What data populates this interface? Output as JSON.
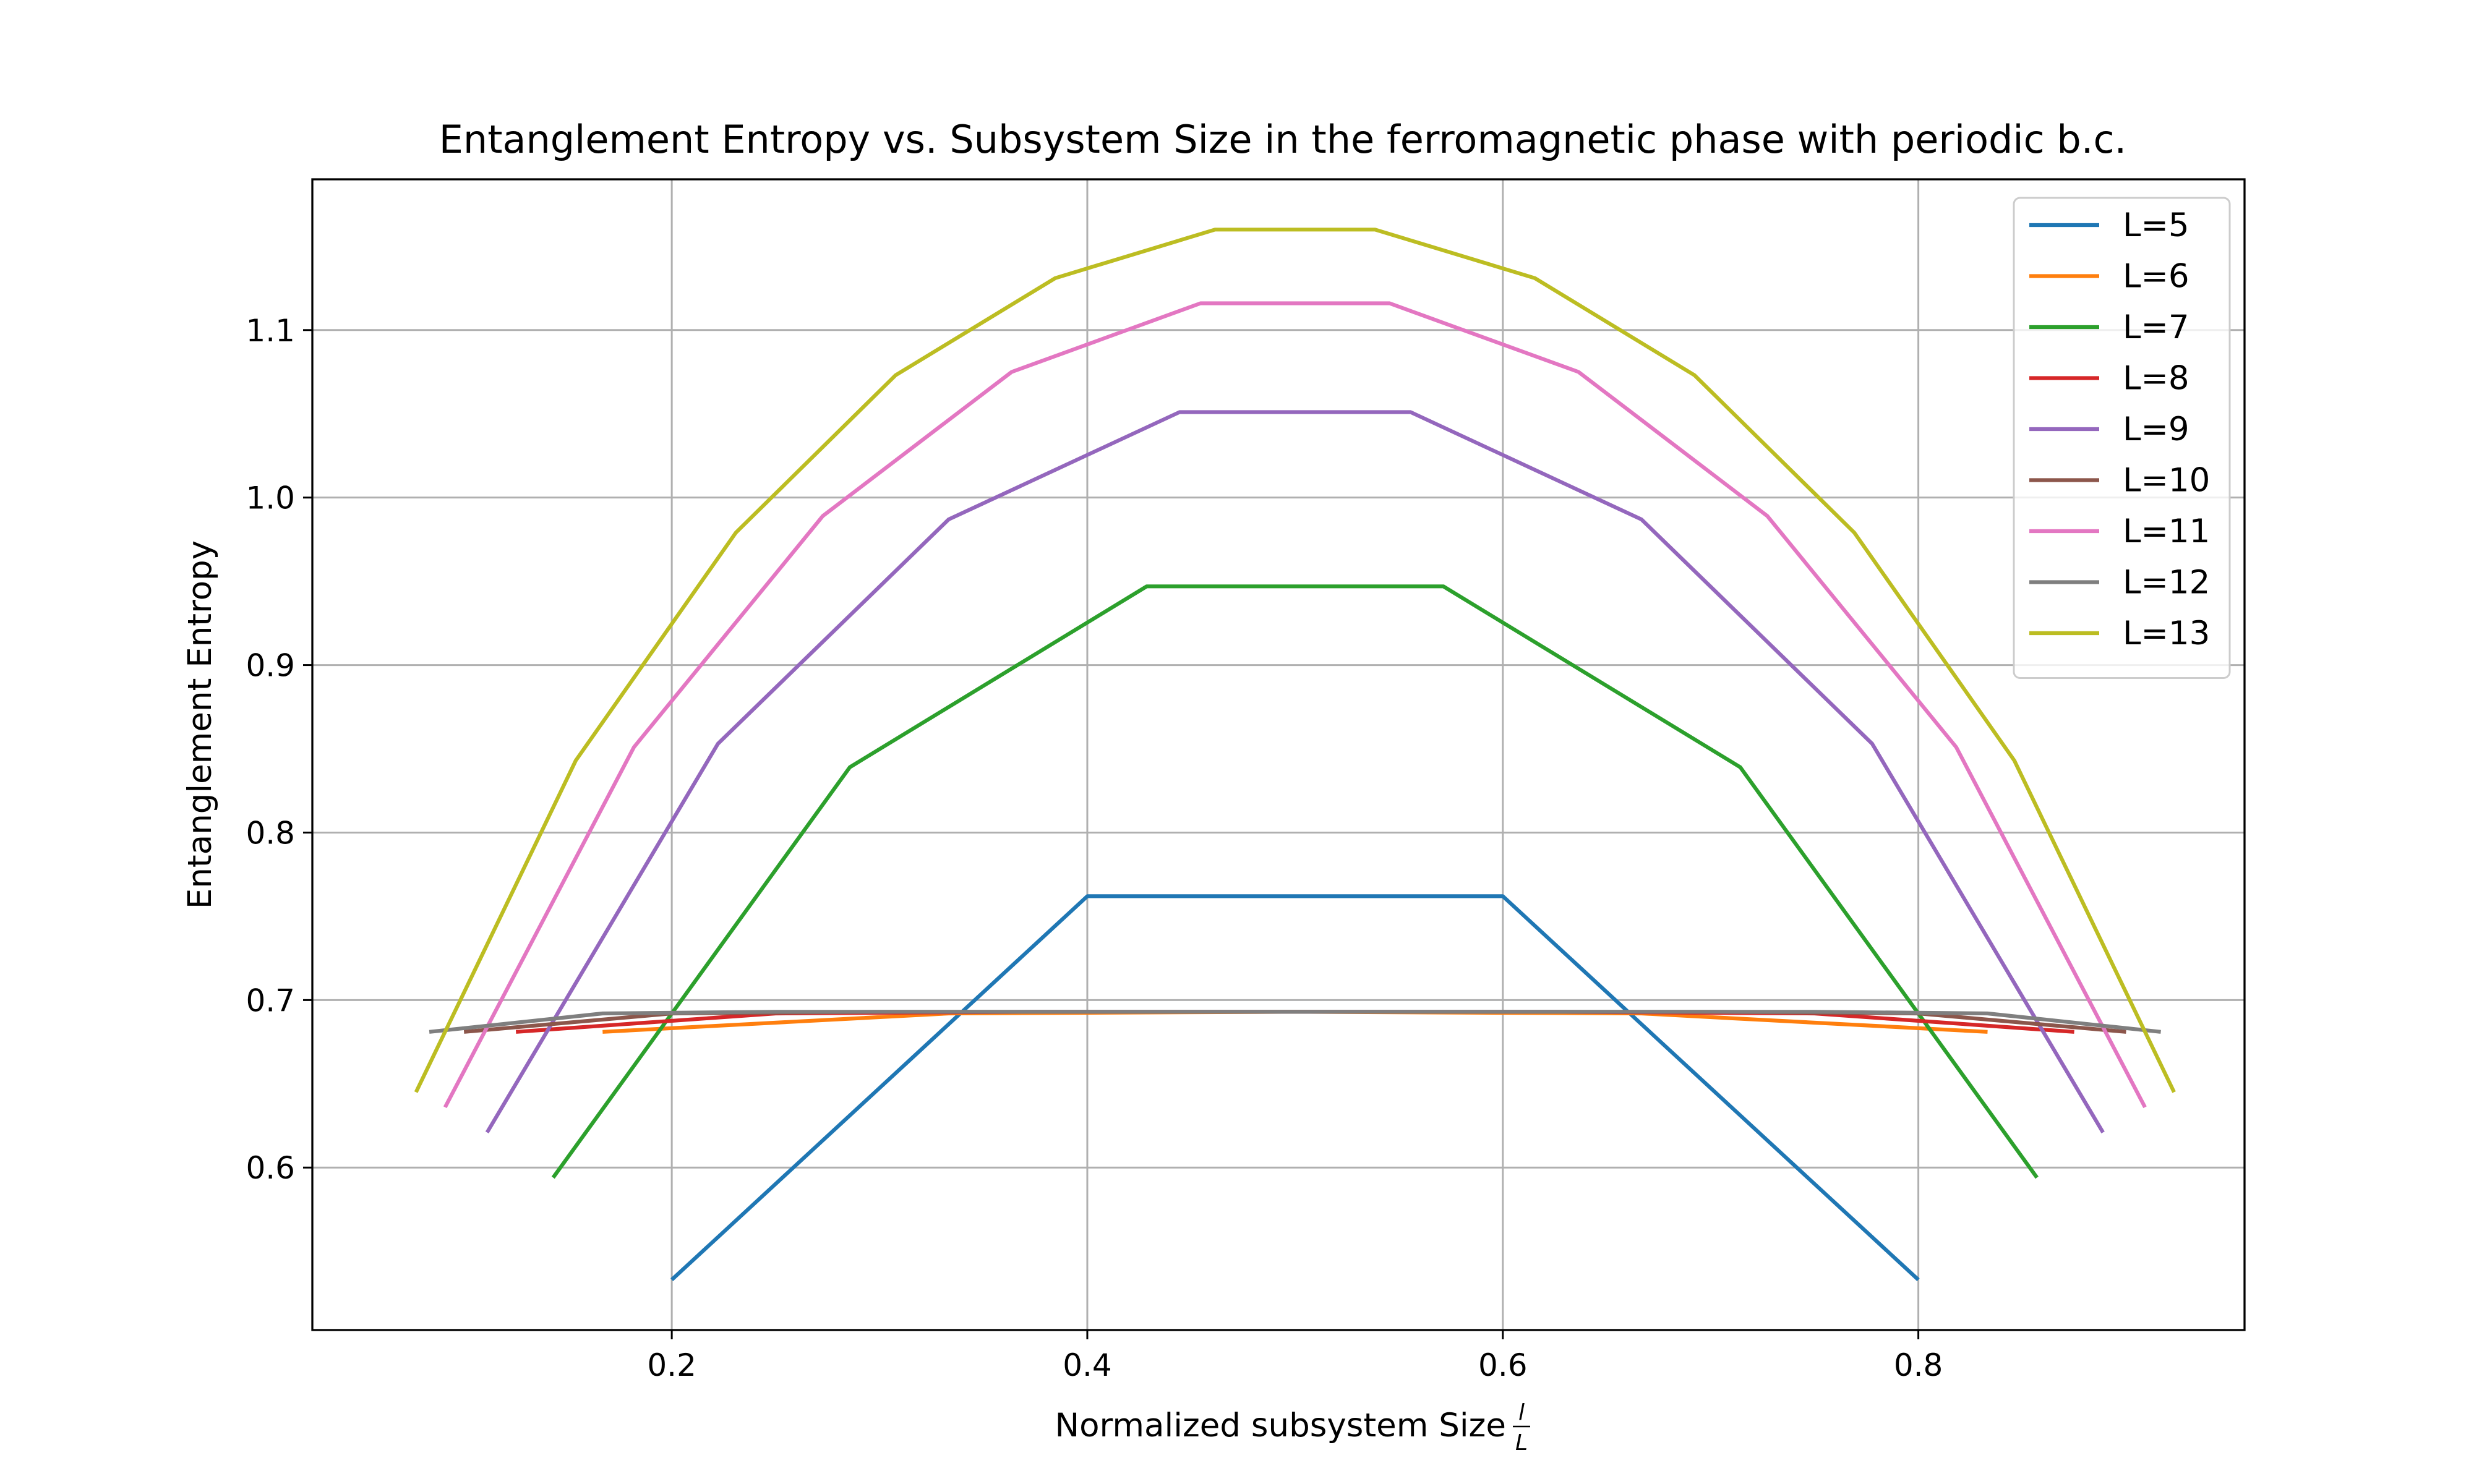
{
  "chart_data": {
    "type": "line",
    "title": "Entanglement Entropy vs. Subsystem Size in the ferromagnetic phase with periodic b.c.",
    "xlabel": "Normalized subsystem Size",
    "xlabel_frac_num": "l",
    "xlabel_frac_den": "L",
    "ylabel": "Entanglement Entropy",
    "xlim": [
      0.027,
      0.957
    ],
    "ylim": [
      0.503,
      1.19
    ],
    "grid": true,
    "legend_position": "top-right",
    "xticks": [
      {
        "value": 0.2,
        "label": "0.2"
      },
      {
        "value": 0.4,
        "label": "0.4"
      },
      {
        "value": 0.6,
        "label": "0.6"
      },
      {
        "value": 0.8,
        "label": "0.8"
      }
    ],
    "yticks": [
      {
        "value": 0.6,
        "label": "0.6"
      },
      {
        "value": 0.7,
        "label": "0.7"
      },
      {
        "value": 0.8,
        "label": "0.8"
      },
      {
        "value": 0.9,
        "label": "0.9"
      },
      {
        "value": 1.0,
        "label": "1.0"
      },
      {
        "value": 1.1,
        "label": "1.1"
      }
    ],
    "series": [
      {
        "name": "L=5",
        "color": "#1f77b4",
        "x": [
          0.2,
          0.4,
          0.6,
          0.8
        ],
        "y": [
          0.533,
          0.762,
          0.762,
          0.533
        ]
      },
      {
        "name": "L=6",
        "color": "#ff7f0e",
        "x": [
          0.1667,
          0.3333,
          0.5,
          0.6667,
          0.8333
        ],
        "y": [
          0.681,
          0.692,
          0.693,
          0.692,
          0.681
        ]
      },
      {
        "name": "L=7",
        "color": "#2ca02c",
        "x": [
          0.1429,
          0.2857,
          0.4286,
          0.5714,
          0.7143,
          0.8571
        ],
        "y": [
          0.594,
          0.839,
          0.947,
          0.947,
          0.839,
          0.594
        ]
      },
      {
        "name": "L=8",
        "color": "#d62728",
        "x": [
          0.125,
          0.25,
          0.375,
          0.5,
          0.625,
          0.75,
          0.875
        ],
        "y": [
          0.681,
          0.692,
          0.693,
          0.693,
          0.693,
          0.692,
          0.681
        ]
      },
      {
        "name": "L=9",
        "color": "#9467bd",
        "x": [
          0.1111,
          0.2222,
          0.3333,
          0.4444,
          0.5556,
          0.6667,
          0.7778,
          0.8889
        ],
        "y": [
          0.621,
          0.853,
          0.987,
          1.051,
          1.051,
          0.987,
          0.853,
          0.621
        ]
      },
      {
        "name": "L=10",
        "color": "#8c564b",
        "x": [
          0.1,
          0.2,
          0.3,
          0.4,
          0.5,
          0.6,
          0.7,
          0.8,
          0.9
        ],
        "y": [
          0.681,
          0.692,
          0.693,
          0.693,
          0.693,
          0.693,
          0.693,
          0.692,
          0.681
        ]
      },
      {
        "name": "L=11",
        "color": "#e377c2",
        "x": [
          0.0909,
          0.1818,
          0.2727,
          0.3636,
          0.4545,
          0.5455,
          0.6364,
          0.7273,
          0.8182,
          0.9091
        ],
        "y": [
          0.636,
          0.851,
          0.989,
          1.075,
          1.116,
          1.116,
          1.075,
          0.989,
          0.851,
          0.636
        ]
      },
      {
        "name": "L=12",
        "color": "#7f7f7f",
        "x": [
          0.0833,
          0.1667,
          0.25,
          0.3333,
          0.4167,
          0.5,
          0.5833,
          0.6667,
          0.75,
          0.8333,
          0.9167
        ],
        "y": [
          0.681,
          0.692,
          0.693,
          0.693,
          0.693,
          0.693,
          0.693,
          0.693,
          0.693,
          0.692,
          0.681
        ]
      },
      {
        "name": "L=13",
        "color": "#bcbd22",
        "x": [
          0.0769,
          0.1538,
          0.2308,
          0.3077,
          0.3846,
          0.4615,
          0.5385,
          0.6154,
          0.6923,
          0.7692,
          0.8462,
          0.9231
        ],
        "y": [
          0.645,
          0.843,
          0.979,
          1.073,
          1.131,
          1.16,
          1.16,
          1.131,
          1.073,
          0.979,
          0.843,
          0.645
        ]
      }
    ]
  }
}
